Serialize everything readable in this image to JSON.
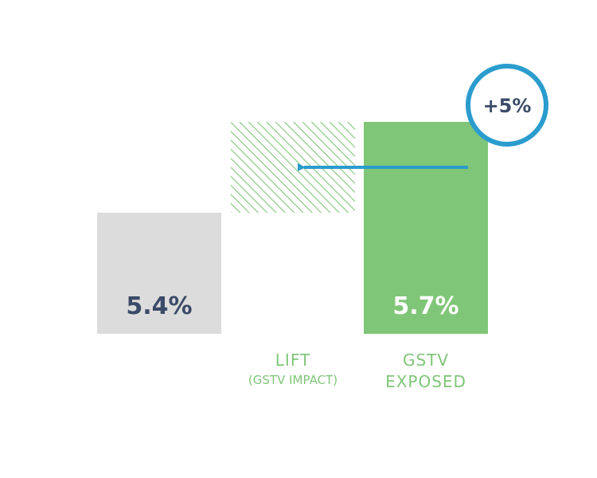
{
  "chart_data": {
    "type": "bar",
    "categories": [
      "",
      "LIFT",
      "GSTV EXPOSED"
    ],
    "category_label_lines": [
      [],
      [
        "LIFT",
        "(GSTV IMPACT)"
      ],
      [
        "GSTV",
        "EXPOSED"
      ]
    ],
    "values": [
      5.4,
      0.3,
      5.7
    ],
    "value_labels": [
      "5.4%",
      "",
      "5.7%"
    ],
    "lift_base": 5.4,
    "lift_callout": "+5%",
    "ylim": [
      0,
      5.7
    ],
    "title": "",
    "xlabel": "",
    "ylabel": "",
    "colors": {
      "baseline_bar": "#dcdcdc",
      "exposed_bar": "#80c678",
      "lift_hatch": "#80c678",
      "baseline_value_text": "#3a4a68",
      "exposed_value_text": "#ffffff",
      "label_text": "#80c678",
      "callout_ring": "#2a9ccd",
      "callout_text": "#3a4a68"
    }
  }
}
